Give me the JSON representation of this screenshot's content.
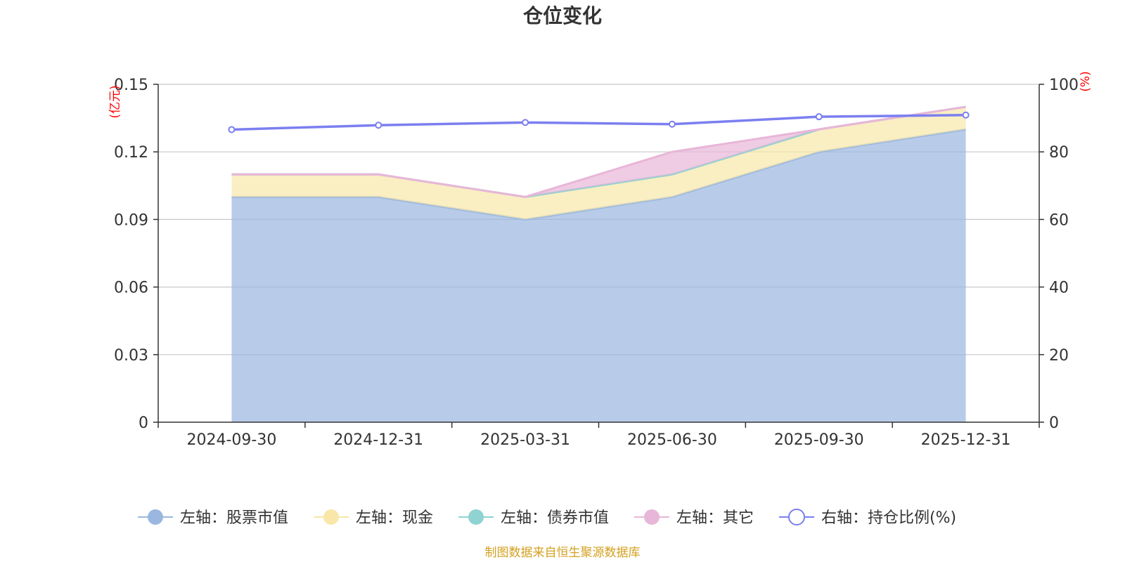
{
  "chart_data": {
    "type": "area",
    "title": "仓位变化",
    "categories": [
      "2024-09-30",
      "2024-12-31",
      "2025-03-31",
      "2025-06-30",
      "2025-09-30",
      "2025-12-31"
    ],
    "left_axis": {
      "unit": "(亿元)",
      "ylim": [
        0,
        0.15
      ],
      "ticks": [
        "0",
        "0.03",
        "0.06",
        "0.09",
        "0.12",
        "0.15"
      ]
    },
    "right_axis": {
      "unit": "(%)",
      "ylim": [
        0,
        100
      ],
      "ticks": [
        "0",
        "20",
        "40",
        "60",
        "80",
        "100"
      ]
    },
    "series": [
      {
        "name": "左轴：股票市值",
        "axis": "left",
        "stacked": true,
        "values": [
          0.1,
          0.1,
          0.09,
          0.1,
          0.12,
          0.13
        ],
        "color": "#9ab7e0"
      },
      {
        "name": "左轴：现金",
        "axis": "left",
        "stacked": true,
        "values": [
          0.01,
          0.01,
          0.01,
          0.01,
          0.01,
          0.01
        ],
        "color": "#f8e7a9"
      },
      {
        "name": "左轴：债券市值",
        "axis": "left",
        "stacked": true,
        "values": [
          0.0,
          0.0,
          0.0,
          0.0,
          0.0,
          0.0
        ],
        "color": "#8fd3d2"
      },
      {
        "name": "左轴：其它",
        "axis": "left",
        "stacked": true,
        "values": [
          0.0,
          0.0,
          0.0,
          0.01,
          0.0,
          0.0
        ],
        "color": "#e8b6d8"
      },
      {
        "name": "右轴：持仓比例(%)",
        "axis": "right",
        "type": "line",
        "values": [
          86.6,
          87.9,
          88.7,
          88.2,
          90.4,
          90.9
        ],
        "color": "#7b7ff0"
      }
    ],
    "grid": true,
    "legend_position": "bottom"
  },
  "footer": {
    "source": "制图数据来自恒生聚源数据库"
  }
}
